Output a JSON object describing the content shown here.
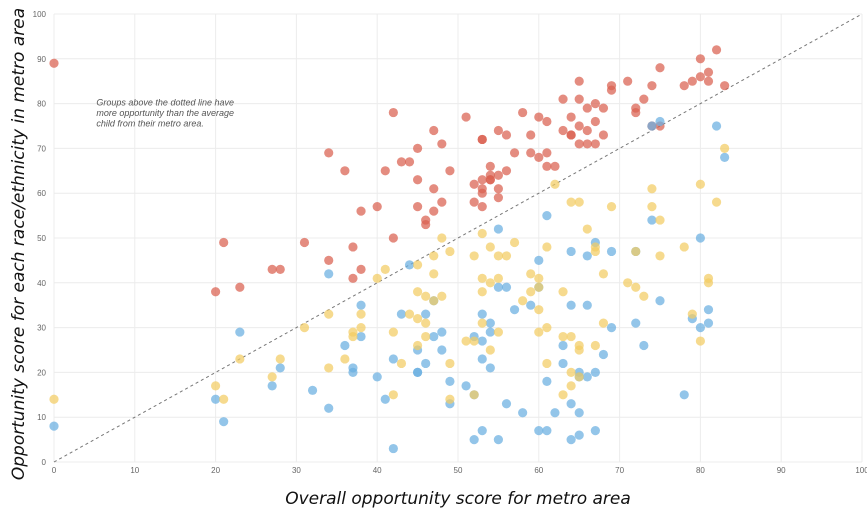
{
  "chart_data": {
    "type": "scatter",
    "title": "",
    "xlabel": "Overall opportunity score for metro area",
    "ylabel": "Opportunity score for each race/ethnicity in metro area",
    "xlim": [
      0,
      100
    ],
    "ylim": [
      0,
      100
    ],
    "x_ticks": [
      "0",
      "10",
      "20",
      "30",
      "40",
      "50",
      "60",
      "70",
      "80",
      "90",
      "100"
    ],
    "y_ticks": [
      "0",
      "10",
      "20",
      "30",
      "40",
      "50",
      "60",
      "70",
      "80",
      "90",
      "100"
    ],
    "grid": true,
    "reference_line": {
      "style": "dotted",
      "from": [
        0,
        0
      ],
      "to": [
        100,
        100
      ]
    },
    "annotation": {
      "lines": [
        "Groups above the dotted line have",
        "more opportunity than the average",
        "child from their metro area."
      ],
      "x": 5,
      "y": 80
    },
    "colors": {
      "red": "#d9604f",
      "blue": "#6aaee0",
      "yellow": "#f2cc63",
      "grid": "#ececec",
      "line": "#777777"
    },
    "series": [
      {
        "color": "red",
        "points": [
          [
            0,
            89
          ],
          [
            20,
            38
          ],
          [
            21,
            49
          ],
          [
            23,
            39
          ],
          [
            27,
            43
          ],
          [
            28,
            43
          ],
          [
            31,
            49
          ],
          [
            34,
            45
          ],
          [
            34,
            69
          ],
          [
            36,
            65
          ],
          [
            37,
            41
          ],
          [
            37,
            48
          ],
          [
            38,
            43
          ],
          [
            38,
            56
          ],
          [
            40,
            57
          ],
          [
            41,
            65
          ],
          [
            42,
            50
          ],
          [
            42,
            78
          ],
          [
            43,
            67
          ],
          [
            44,
            67
          ],
          [
            45,
            57
          ],
          [
            45,
            63
          ],
          [
            45,
            70
          ],
          [
            46,
            53
          ],
          [
            46,
            54
          ],
          [
            47,
            61
          ],
          [
            47,
            74
          ],
          [
            47,
            56
          ],
          [
            48,
            58
          ],
          [
            48,
            71
          ],
          [
            49,
            65
          ],
          [
            51,
            77
          ],
          [
            52,
            58
          ],
          [
            52,
            62
          ],
          [
            53,
            57
          ],
          [
            53,
            60
          ],
          [
            53,
            61
          ],
          [
            53,
            63
          ],
          [
            53,
            72
          ],
          [
            54,
            63
          ],
          [
            54,
            64
          ],
          [
            54,
            66
          ],
          [
            55,
            59
          ],
          [
            55,
            61
          ],
          [
            55,
            64
          ],
          [
            55,
            74
          ],
          [
            56,
            65
          ],
          [
            56,
            73
          ],
          [
            57,
            69
          ],
          [
            58,
            78
          ],
          [
            59,
            69
          ],
          [
            59,
            73
          ],
          [
            60,
            68
          ],
          [
            60,
            77
          ],
          [
            61,
            66
          ],
          [
            61,
            69
          ],
          [
            61,
            76
          ],
          [
            62,
            66
          ],
          [
            63,
            74
          ],
          [
            63,
            81
          ],
          [
            64,
            73
          ],
          [
            64,
            77
          ],
          [
            65,
            71
          ],
          [
            65,
            75
          ],
          [
            65,
            81
          ],
          [
            65,
            85
          ],
          [
            66,
            71
          ],
          [
            66,
            74
          ],
          [
            66,
            79
          ],
          [
            67,
            71
          ],
          [
            67,
            76
          ],
          [
            67,
            80
          ],
          [
            68,
            73
          ],
          [
            68,
            79
          ],
          [
            69,
            83
          ],
          [
            69,
            84
          ],
          [
            71,
            85
          ],
          [
            72,
            78
          ],
          [
            72,
            79
          ],
          [
            73,
            81
          ],
          [
            74,
            75
          ],
          [
            74,
            84
          ],
          [
            75,
            75
          ],
          [
            75,
            88
          ],
          [
            78,
            84
          ],
          [
            79,
            85
          ],
          [
            80,
            86
          ],
          [
            80,
            90
          ],
          [
            81,
            85
          ],
          [
            81,
            87
          ],
          [
            82,
            92
          ],
          [
            83,
            84
          ],
          [
            64,
            73
          ],
          [
            53,
            72
          ],
          [
            54,
            63
          ]
        ]
      },
      {
        "color": "blue",
        "points": [
          [
            0,
            8
          ],
          [
            20,
            14
          ],
          [
            21,
            9
          ],
          [
            23,
            29
          ],
          [
            27,
            17
          ],
          [
            28,
            21
          ],
          [
            32,
            16
          ],
          [
            34,
            12
          ],
          [
            34,
            42
          ],
          [
            36,
            26
          ],
          [
            37,
            20
          ],
          [
            37,
            21
          ],
          [
            38,
            28
          ],
          [
            38,
            35
          ],
          [
            40,
            19
          ],
          [
            41,
            14
          ],
          [
            42,
            3
          ],
          [
            42,
            23
          ],
          [
            43,
            33
          ],
          [
            44,
            44
          ],
          [
            45,
            20
          ],
          [
            45,
            25
          ],
          [
            46,
            22
          ],
          [
            46,
            33
          ],
          [
            47,
            28
          ],
          [
            47,
            36
          ],
          [
            48,
            25
          ],
          [
            48,
            29
          ],
          [
            49,
            13
          ],
          [
            49,
            18
          ],
          [
            51,
            17
          ],
          [
            52,
            5
          ],
          [
            52,
            15
          ],
          [
            53,
            7
          ],
          [
            53,
            23
          ],
          [
            53,
            27
          ],
          [
            53,
            33
          ],
          [
            54,
            21
          ],
          [
            54,
            29
          ],
          [
            54,
            31
          ],
          [
            55,
            5
          ],
          [
            55,
            39
          ],
          [
            55,
            52
          ],
          [
            56,
            13
          ],
          [
            56,
            39
          ],
          [
            57,
            34
          ],
          [
            58,
            11
          ],
          [
            59,
            35
          ],
          [
            60,
            7
          ],
          [
            60,
            39
          ],
          [
            60,
            45
          ],
          [
            61,
            7
          ],
          [
            61,
            18
          ],
          [
            61,
            55
          ],
          [
            62,
            11
          ],
          [
            63,
            22
          ],
          [
            63,
            26
          ],
          [
            64,
            5
          ],
          [
            64,
            13
          ],
          [
            64,
            35
          ],
          [
            64,
            47
          ],
          [
            65,
            6
          ],
          [
            65,
            11
          ],
          [
            65,
            19
          ],
          [
            65,
            20
          ],
          [
            66,
            19
          ],
          [
            66,
            35
          ],
          [
            66,
            46
          ],
          [
            67,
            7
          ],
          [
            67,
            20
          ],
          [
            67,
            49
          ],
          [
            68,
            24
          ],
          [
            69,
            30
          ],
          [
            69,
            47
          ],
          [
            72,
            31
          ],
          [
            72,
            47
          ],
          [
            73,
            26
          ],
          [
            74,
            54
          ],
          [
            74,
            75
          ],
          [
            75,
            36
          ],
          [
            75,
            76
          ],
          [
            78,
            15
          ],
          [
            79,
            32
          ],
          [
            80,
            30
          ],
          [
            80,
            50
          ],
          [
            81,
            31
          ],
          [
            81,
            34
          ],
          [
            82,
            75
          ],
          [
            83,
            68
          ],
          [
            52,
            28
          ],
          [
            45,
            20
          ]
        ]
      },
      {
        "color": "yellow",
        "points": [
          [
            0,
            14
          ],
          [
            20,
            17
          ],
          [
            21,
            14
          ],
          [
            23,
            23
          ],
          [
            27,
            19
          ],
          [
            28,
            23
          ],
          [
            31,
            30
          ],
          [
            34,
            21
          ],
          [
            34,
            33
          ],
          [
            36,
            23
          ],
          [
            37,
            28
          ],
          [
            37,
            29
          ],
          [
            38,
            30
          ],
          [
            38,
            33
          ],
          [
            40,
            41
          ],
          [
            41,
            43
          ],
          [
            42,
            15
          ],
          [
            42,
            29
          ],
          [
            43,
            22
          ],
          [
            44,
            33
          ],
          [
            45,
            26
          ],
          [
            45,
            32
          ],
          [
            45,
            38
          ],
          [
            45,
            44
          ],
          [
            46,
            28
          ],
          [
            46,
            31
          ],
          [
            46,
            37
          ],
          [
            47,
            36
          ],
          [
            47,
            42
          ],
          [
            47,
            46
          ],
          [
            48,
            37
          ],
          [
            48,
            50
          ],
          [
            49,
            14
          ],
          [
            49,
            22
          ],
          [
            49,
            47
          ],
          [
            51,
            27
          ],
          [
            52,
            15
          ],
          [
            52,
            27
          ],
          [
            52,
            46
          ],
          [
            53,
            31
          ],
          [
            53,
            38
          ],
          [
            53,
            41
          ],
          [
            53,
            51
          ],
          [
            54,
            25
          ],
          [
            54,
            40
          ],
          [
            54,
            48
          ],
          [
            55,
            29
          ],
          [
            55,
            41
          ],
          [
            55,
            46
          ],
          [
            56,
            46
          ],
          [
            57,
            49
          ],
          [
            58,
            36
          ],
          [
            59,
            38
          ],
          [
            59,
            42
          ],
          [
            60,
            29
          ],
          [
            60,
            34
          ],
          [
            60,
            39
          ],
          [
            60,
            41
          ],
          [
            61,
            22
          ],
          [
            61,
            30
          ],
          [
            61,
            48
          ],
          [
            62,
            62
          ],
          [
            63,
            15
          ],
          [
            63,
            28
          ],
          [
            63,
            38
          ],
          [
            64,
            17
          ],
          [
            64,
            20
          ],
          [
            64,
            28
          ],
          [
            64,
            58
          ],
          [
            65,
            19
          ],
          [
            65,
            25
          ],
          [
            65,
            26
          ],
          [
            65,
            58
          ],
          [
            66,
            52
          ],
          [
            67,
            26
          ],
          [
            67,
            47
          ],
          [
            67,
            48
          ],
          [
            68,
            31
          ],
          [
            68,
            42
          ],
          [
            69,
            57
          ],
          [
            71,
            40
          ],
          [
            72,
            39
          ],
          [
            72,
            47
          ],
          [
            73,
            37
          ],
          [
            74,
            57
          ],
          [
            74,
            61
          ],
          [
            75,
            46
          ],
          [
            75,
            54
          ],
          [
            78,
            48
          ],
          [
            79,
            33
          ],
          [
            80,
            27
          ],
          [
            80,
            62
          ],
          [
            81,
            40
          ],
          [
            81,
            41
          ],
          [
            82,
            58
          ],
          [
            83,
            70
          ]
        ]
      }
    ]
  }
}
